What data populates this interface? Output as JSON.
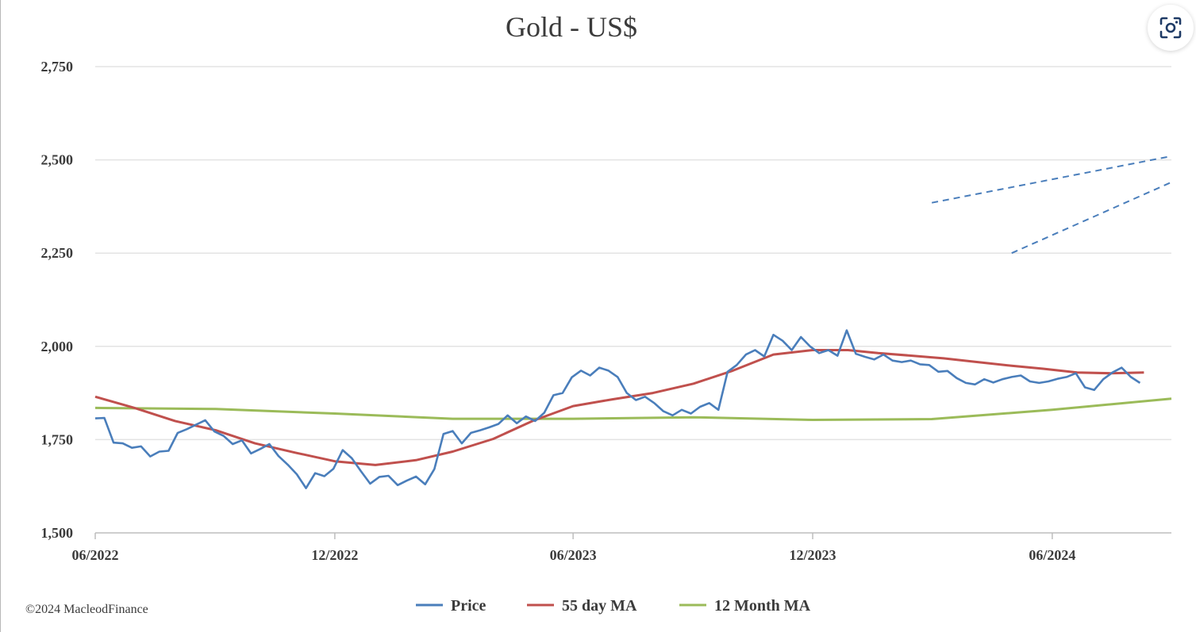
{
  "chart_data": {
    "type": "line",
    "title": "Gold - US$",
    "xlabel": "",
    "ylabel": "",
    "ylim": [
      1500,
      2750
    ],
    "y_ticks": [
      1500,
      1750,
      2000,
      2250,
      2500,
      2750
    ],
    "y_tick_labels": [
      "1,500",
      "1,750",
      "2,000",
      "2,250",
      "2,500",
      "2,750"
    ],
    "x_range": [
      "2022-06-01",
      "2024-08-31"
    ],
    "x_ticks": [
      {
        "date": "2022-06-01",
        "label": "06/2022"
      },
      {
        "date": "2022-12-01",
        "label": "12/2022"
      },
      {
        "date": "2023-06-01",
        "label": "06/2023"
      },
      {
        "date": "2023-12-01",
        "label": "12/2023"
      },
      {
        "date": "2024-06-01",
        "label": "06/2024"
      }
    ],
    "grid": "horizontal",
    "legend_position": "bottom",
    "series": [
      {
        "name": "Price",
        "color": "#4a7ebb",
        "points": [
          [
            "2022-06-01",
            1807
          ],
          [
            "2022-06-08",
            1808
          ],
          [
            "2022-06-15",
            1742
          ],
          [
            "2022-06-22",
            1740
          ],
          [
            "2022-06-29",
            1728
          ],
          [
            "2022-07-06",
            1732
          ],
          [
            "2022-07-13",
            1705
          ],
          [
            "2022-07-20",
            1718
          ],
          [
            "2022-07-27",
            1720
          ],
          [
            "2022-08-03",
            1768
          ],
          [
            "2022-08-10",
            1778
          ],
          [
            "2022-08-17",
            1790
          ],
          [
            "2022-08-24",
            1802
          ],
          [
            "2022-08-31",
            1772
          ],
          [
            "2022-09-07",
            1760
          ],
          [
            "2022-09-14",
            1738
          ],
          [
            "2022-09-21",
            1748
          ],
          [
            "2022-09-28",
            1713
          ],
          [
            "2022-10-05",
            1725
          ],
          [
            "2022-10-12",
            1738
          ],
          [
            "2022-10-19",
            1706
          ],
          [
            "2022-10-26",
            1683
          ],
          [
            "2022-11-02",
            1657
          ],
          [
            "2022-11-09",
            1620
          ],
          [
            "2022-11-16",
            1660
          ],
          [
            "2022-11-23",
            1652
          ],
          [
            "2022-11-30",
            1672
          ],
          [
            "2022-12-07",
            1722
          ],
          [
            "2022-12-14",
            1700
          ],
          [
            "2022-12-21",
            1665
          ],
          [
            "2022-12-28",
            1632
          ],
          [
            "2023-01-04",
            1650
          ],
          [
            "2023-01-11",
            1653
          ],
          [
            "2023-01-18",
            1628
          ],
          [
            "2023-01-25",
            1640
          ],
          [
            "2023-02-01",
            1651
          ],
          [
            "2023-02-08",
            1630
          ],
          [
            "2023-02-15",
            1671
          ],
          [
            "2023-02-22",
            1765
          ],
          [
            "2023-03-01",
            1773
          ],
          [
            "2023-03-08",
            1740
          ],
          [
            "2023-03-15",
            1768
          ],
          [
            "2023-03-22",
            1775
          ],
          [
            "2023-03-29",
            1783
          ],
          [
            "2023-04-05",
            1792
          ],
          [
            "2023-04-12",
            1815
          ],
          [
            "2023-04-19",
            1794
          ],
          [
            "2023-04-26",
            1812
          ],
          [
            "2023-05-03",
            1800
          ],
          [
            "2023-05-10",
            1822
          ],
          [
            "2023-05-17",
            1869
          ],
          [
            "2023-05-24",
            1875
          ],
          [
            "2023-05-31",
            1917
          ],
          [
            "2023-06-07",
            1935
          ],
          [
            "2023-06-14",
            1922
          ],
          [
            "2023-06-21",
            1943
          ],
          [
            "2023-06-28",
            1935
          ],
          [
            "2023-07-05",
            1918
          ],
          [
            "2023-07-12",
            1875
          ],
          [
            "2023-07-19",
            1856
          ],
          [
            "2023-07-26",
            1865
          ],
          [
            "2023-08-02",
            1848
          ],
          [
            "2023-08-09",
            1826
          ],
          [
            "2023-08-16",
            1815
          ],
          [
            "2023-08-23",
            1830
          ],
          [
            "2023-08-30",
            1820
          ],
          [
            "2023-09-06",
            1838
          ],
          [
            "2023-09-13",
            1848
          ],
          [
            "2023-09-20",
            1830
          ],
          [
            "2023-09-27",
            1932
          ],
          [
            "2023-10-04",
            1950
          ],
          [
            "2023-10-11",
            1978
          ],
          [
            "2023-10-18",
            1990
          ],
          [
            "2023-10-25",
            1973
          ],
          [
            "2023-11-01",
            2031
          ],
          [
            "2023-11-08",
            2015
          ],
          [
            "2023-11-15",
            1990
          ],
          [
            "2023-11-22",
            2025
          ],
          [
            "2023-11-29",
            2000
          ],
          [
            "2023-12-06",
            1982
          ],
          [
            "2023-12-13",
            1990
          ],
          [
            "2023-12-20",
            1975
          ],
          [
            "2023-12-27",
            2043
          ],
          [
            "2024-01-03",
            1980
          ],
          [
            "2024-01-10",
            1972
          ],
          [
            "2024-01-17",
            1965
          ],
          [
            "2024-01-24",
            1978
          ],
          [
            "2024-01-31",
            1962
          ],
          [
            "2024-02-07",
            1958
          ],
          [
            "2024-02-14",
            1962
          ],
          [
            "2024-02-21",
            1952
          ],
          [
            "2024-02-28",
            1950
          ],
          [
            "2024-03-06",
            1932
          ],
          [
            "2024-03-13",
            1934
          ],
          [
            "2024-03-20",
            1915
          ],
          [
            "2024-03-27",
            1902
          ],
          [
            "2024-04-03",
            1898
          ],
          [
            "2024-04-10",
            1912
          ],
          [
            "2024-04-17",
            1903
          ],
          [
            "2024-04-24",
            1912
          ],
          [
            "2024-05-01",
            1918
          ],
          [
            "2024-05-08",
            1922
          ],
          [
            "2024-05-15",
            1906
          ],
          [
            "2024-05-22",
            1902
          ],
          [
            "2024-05-29",
            1906
          ],
          [
            "2024-06-05",
            1913
          ],
          [
            "2024-06-12",
            1918
          ],
          [
            "2024-06-19",
            1928
          ],
          [
            "2024-06-26",
            1890
          ],
          [
            "2024-07-03",
            1883
          ],
          [
            "2024-07-10",
            1912
          ],
          [
            "2024-07-17",
            1930
          ],
          [
            "2024-07-24",
            1943
          ],
          [
            "2024-07-31",
            1918
          ],
          [
            "2024-08-07",
            1902
          ]
        ]
      },
      {
        "name": "55 day MA",
        "color": "#c0504d",
        "points": [
          [
            "2022-06-01",
            1865
          ],
          [
            "2022-07-01",
            1835
          ],
          [
            "2022-08-01",
            1800
          ],
          [
            "2022-09-01",
            1775
          ],
          [
            "2022-10-01",
            1740
          ],
          [
            "2022-11-01",
            1715
          ],
          [
            "2022-12-01",
            1692
          ],
          [
            "2023-01-01",
            1682
          ],
          [
            "2023-02-01",
            1695
          ],
          [
            "2023-03-01",
            1718
          ],
          [
            "2023-04-01",
            1752
          ],
          [
            "2023-05-01",
            1800
          ],
          [
            "2023-06-01",
            1840
          ],
          [
            "2023-07-01",
            1858
          ],
          [
            "2023-08-01",
            1875
          ],
          [
            "2023-09-01",
            1900
          ],
          [
            "2023-10-01",
            1935
          ],
          [
            "2023-11-01",
            1978
          ],
          [
            "2023-12-01",
            1990
          ],
          [
            "2023-12-28",
            1990
          ],
          [
            "2024-01-20",
            1982
          ],
          [
            "2024-02-15",
            1975
          ],
          [
            "2024-03-10",
            1968
          ],
          [
            "2024-04-05",
            1958
          ],
          [
            "2024-05-01",
            1948
          ],
          [
            "2024-05-25",
            1940
          ],
          [
            "2024-06-20",
            1930
          ],
          [
            "2024-07-15",
            1928
          ],
          [
            "2024-08-10",
            1930
          ]
        ]
      },
      {
        "name": "12 Month MA",
        "color": "#9bbb59",
        "points": [
          [
            "2022-06-01",
            1835
          ],
          [
            "2022-09-01",
            1832
          ],
          [
            "2022-12-01",
            1820
          ],
          [
            "2023-03-01",
            1806
          ],
          [
            "2023-06-01",
            1806
          ],
          [
            "2023-09-01",
            1810
          ],
          [
            "2023-12-01",
            1803
          ],
          [
            "2024-03-01",
            1805
          ],
          [
            "2024-06-01",
            1830
          ],
          [
            "2024-08-31",
            1860
          ]
        ]
      }
    ],
    "annotations": [
      {
        "type": "dashed-trendline",
        "color": "#4a7ebb",
        "from": [
          "2024-03-01",
          2385
        ],
        "to": [
          "2024-08-31",
          2510
        ]
      },
      {
        "type": "dashed-trendline",
        "color": "#4a7ebb",
        "from": [
          "2024-05-01",
          2250
        ],
        "to": [
          "2024-08-31",
          2440
        ]
      }
    ]
  },
  "copyright": "©2024 MacleodFinance",
  "lens_button": {
    "icon": "lens-icon"
  }
}
